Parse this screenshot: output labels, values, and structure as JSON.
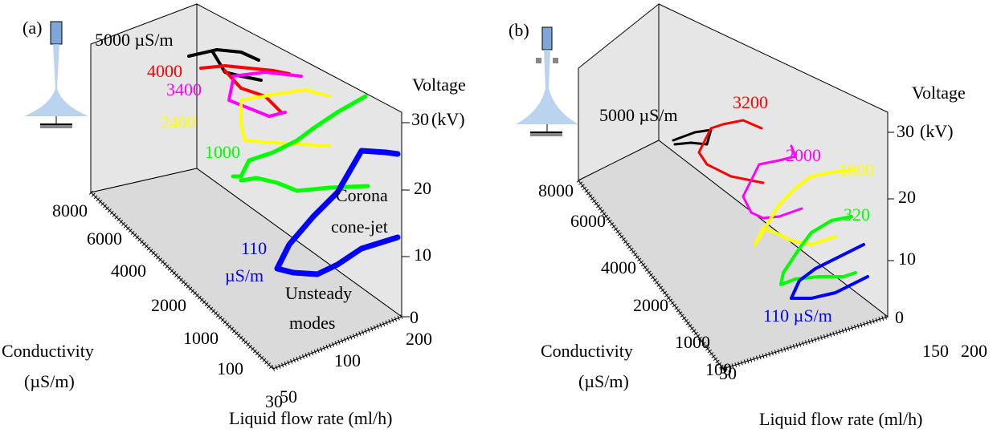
{
  "panels": [
    {
      "label": "(a)",
      "z_axis": {
        "title": [
          "Voltage",
          "(kV)"
        ],
        "ticks": [
          "0",
          "10",
          "20",
          "30"
        ]
      },
      "y_axis": {
        "title": [
          "Conductivity",
          "(µS/m)"
        ],
        "ticks": [
          "100",
          "1000",
          "2000",
          "4000",
          "6000",
          "8000"
        ]
      },
      "x_axis": {
        "title": "Liquid flow rate (ml/h)",
        "ticks": [
          "30",
          "50",
          "100",
          "200"
        ]
      },
      "annotations": [
        "5000 µS/m",
        "4000",
        "3400",
        "2400",
        "1000",
        "Corona",
        "cone-jet",
        "110",
        "µS/m",
        "Unsteady",
        "modes"
      ]
    },
    {
      "label": "(b)",
      "z_axis": {
        "title": [
          "Voltage",
          "(kV)"
        ],
        "ticks": [
          "0",
          "10",
          "20",
          "30"
        ]
      },
      "y_axis": {
        "title": [
          "Conductivity",
          "(µS/m)"
        ],
        "ticks": [
          "100",
          "1000",
          "2000",
          "4000",
          "6000",
          "8000"
        ]
      },
      "x_axis": {
        "title": "Liquid flow rate (ml/h)",
        "ticks": [
          "30",
          "150",
          "200"
        ]
      },
      "annotations": [
        "5000 µS/m",
        "3200",
        "2000",
        "1000",
        "320",
        "110 µS/m"
      ]
    }
  ]
}
